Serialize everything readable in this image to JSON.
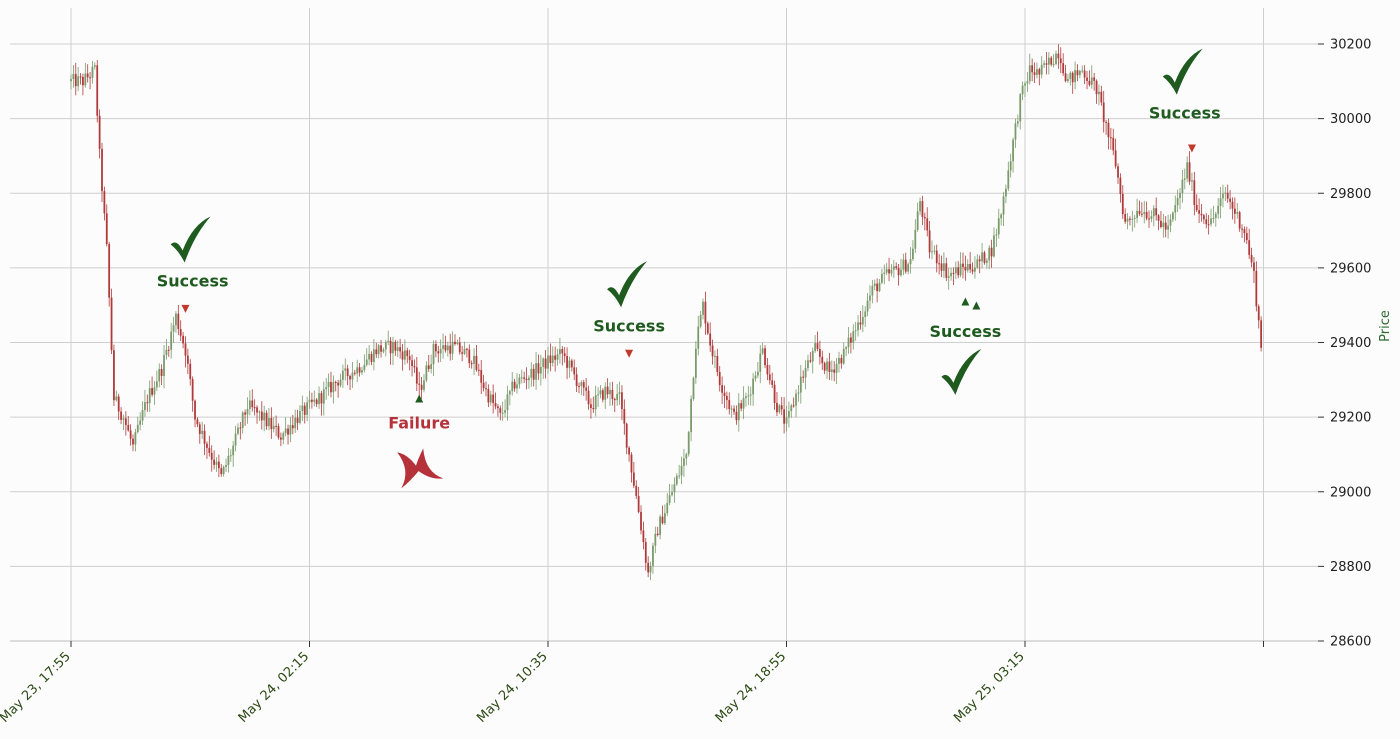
{
  "chart_data": {
    "type": "candlestick",
    "ylabel": "Price",
    "ylim": [
      28600,
      30250
    ],
    "yticks": [
      28600,
      28800,
      29000,
      29200,
      29400,
      29600,
      29800,
      30000,
      30200
    ],
    "x_ticks": [
      {
        "label": "May 23, 17:55",
        "index": 0
      },
      {
        "label": "May 24, 02:15",
        "index": 100
      },
      {
        "label": "May 24, 10:35",
        "index": 200
      },
      {
        "label": "May 24, 18:55",
        "index": 300
      },
      {
        "label": "May 25, 03:15",
        "index": 400
      }
    ],
    "n_candles": 500,
    "grid": true,
    "colors": {
      "up": "#7a9a6b",
      "down": "#b03a3a",
      "success": "#1f5a1f",
      "failure": "#b5323a",
      "marker_down": "#c0392b",
      "marker_up": "#1f5a1f"
    },
    "price_path": [
      {
        "i": 0,
        "p": 30100
      },
      {
        "i": 5,
        "p": 30100
      },
      {
        "i": 10,
        "p": 30130
      },
      {
        "i": 12,
        "p": 29900
      },
      {
        "i": 15,
        "p": 29650
      },
      {
        "i": 18,
        "p": 29250
      },
      {
        "i": 22,
        "p": 29200
      },
      {
        "i": 26,
        "p": 29120
      },
      {
        "i": 32,
        "p": 29250
      },
      {
        "i": 38,
        "p": 29330
      },
      {
        "i": 44,
        "p": 29470
      },
      {
        "i": 48,
        "p": 29380
      },
      {
        "i": 52,
        "p": 29200
      },
      {
        "i": 58,
        "p": 29110
      },
      {
        "i": 63,
        "p": 29040
      },
      {
        "i": 68,
        "p": 29120
      },
      {
        "i": 74,
        "p": 29230
      },
      {
        "i": 80,
        "p": 29200
      },
      {
        "i": 88,
        "p": 29150
      },
      {
        "i": 95,
        "p": 29200
      },
      {
        "i": 104,
        "p": 29250
      },
      {
        "i": 112,
        "p": 29300
      },
      {
        "i": 120,
        "p": 29330
      },
      {
        "i": 128,
        "p": 29380
      },
      {
        "i": 135,
        "p": 29390
      },
      {
        "i": 142,
        "p": 29360
      },
      {
        "i": 146,
        "p": 29270
      },
      {
        "i": 152,
        "p": 29380
      },
      {
        "i": 160,
        "p": 29390
      },
      {
        "i": 168,
        "p": 29360
      },
      {
        "i": 174,
        "p": 29270
      },
      {
        "i": 180,
        "p": 29200
      },
      {
        "i": 186,
        "p": 29290
      },
      {
        "i": 194,
        "p": 29320
      },
      {
        "i": 200,
        "p": 29350
      },
      {
        "i": 206,
        "p": 29370
      },
      {
        "i": 212,
        "p": 29300
      },
      {
        "i": 218,
        "p": 29230
      },
      {
        "i": 224,
        "p": 29270
      },
      {
        "i": 230,
        "p": 29250
      },
      {
        "i": 234,
        "p": 29100
      },
      {
        "i": 238,
        "p": 28950
      },
      {
        "i": 242,
        "p": 28780
      },
      {
        "i": 246,
        "p": 28900
      },
      {
        "i": 252,
        "p": 29000
      },
      {
        "i": 258,
        "p": 29100
      },
      {
        "i": 262,
        "p": 29400
      },
      {
        "i": 265,
        "p": 29500
      },
      {
        "i": 268,
        "p": 29400
      },
      {
        "i": 272,
        "p": 29300
      },
      {
        "i": 278,
        "p": 29200
      },
      {
        "i": 284,
        "p": 29260
      },
      {
        "i": 290,
        "p": 29380
      },
      {
        "i": 296,
        "p": 29230
      },
      {
        "i": 300,
        "p": 29180
      },
      {
        "i": 306,
        "p": 29300
      },
      {
        "i": 312,
        "p": 29380
      },
      {
        "i": 318,
        "p": 29320
      },
      {
        "i": 324,
        "p": 29370
      },
      {
        "i": 330,
        "p": 29450
      },
      {
        "i": 336,
        "p": 29540
      },
      {
        "i": 342,
        "p": 29580
      },
      {
        "i": 348,
        "p": 29600
      },
      {
        "i": 352,
        "p": 29620
      },
      {
        "i": 356,
        "p": 29780
      },
      {
        "i": 360,
        "p": 29650
      },
      {
        "i": 364,
        "p": 29620
      },
      {
        "i": 368,
        "p": 29580
      },
      {
        "i": 374,
        "p": 29600
      },
      {
        "i": 380,
        "p": 29610
      },
      {
        "i": 386,
        "p": 29650
      },
      {
        "i": 390,
        "p": 29750
      },
      {
        "i": 394,
        "p": 29900
      },
      {
        "i": 398,
        "p": 30050
      },
      {
        "i": 402,
        "p": 30130
      },
      {
        "i": 406,
        "p": 30120
      },
      {
        "i": 410,
        "p": 30150
      },
      {
        "i": 414,
        "p": 30180
      },
      {
        "i": 418,
        "p": 30100
      },
      {
        "i": 424,
        "p": 30130
      },
      {
        "i": 430,
        "p": 30080
      },
      {
        "i": 434,
        "p": 29980
      },
      {
        "i": 438,
        "p": 29880
      },
      {
        "i": 442,
        "p": 29720
      },
      {
        "i": 448,
        "p": 29760
      },
      {
        "i": 454,
        "p": 29740
      },
      {
        "i": 460,
        "p": 29700
      },
      {
        "i": 464,
        "p": 29780
      },
      {
        "i": 468,
        "p": 29870
      },
      {
        "i": 472,
        "p": 29760
      },
      {
        "i": 478,
        "p": 29720
      },
      {
        "i": 484,
        "p": 29800
      },
      {
        "i": 488,
        "p": 29750
      },
      {
        "i": 492,
        "p": 29700
      },
      {
        "i": 496,
        "p": 29580
      },
      {
        "i": 499,
        "p": 29390
      }
    ],
    "annotations": [
      {
        "label": "Success",
        "kind": "success",
        "mark_index": 48,
        "mark_price": 29490,
        "direction": "down",
        "text_index": 51,
        "text_price": 29550,
        "symbol_above": true
      },
      {
        "label": "Failure",
        "kind": "failure",
        "mark_index": 146,
        "mark_price": 29250,
        "direction": "up",
        "text_index": 146,
        "text_price": 29170,
        "symbol_above": false
      },
      {
        "label": "Success",
        "kind": "success",
        "mark_index": 234,
        "mark_price": 29370,
        "direction": "down",
        "text_index": 234,
        "text_price": 29430,
        "symbol_above": true
      },
      {
        "label": "Success",
        "kind": "success",
        "mark_index": 375,
        "mark_price": 29510,
        "direction": "up",
        "text_index": 375,
        "text_price": 29415,
        "symbol_above": false
      },
      {
        "label": "Success",
        "kind": "success",
        "mark_index": 470,
        "mark_price": 29920,
        "direction": "down",
        "text_index": 467,
        "text_price": 30000,
        "symbol_above": true
      }
    ]
  }
}
